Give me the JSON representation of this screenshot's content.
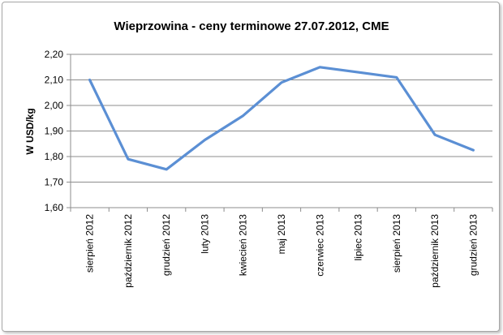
{
  "chart_data": {
    "type": "line",
    "title": "Wieprzowina - ceny terminowe 27.07.2012, CME",
    "xlabel": "",
    "ylabel": "W USD/kg",
    "categories": [
      "sierpień 2012",
      "październik 2012",
      "grudzień 2012",
      "luty 2013",
      "kwiecień 2013",
      "maj 2013",
      "czerwiec 2013",
      "lipiec 2013",
      "sierpień 2013",
      "październik 2013",
      "grudzień 2013"
    ],
    "series": [
      {
        "values": [
          2.1,
          1.79,
          1.75,
          1.865,
          1.96,
          2.09,
          2.15,
          2.13,
          2.11,
          1.885,
          1.825
        ],
        "color": "#5b8fd4"
      }
    ],
    "ylim": [
      1.6,
      2.2
    ],
    "yticks": [
      "1,60",
      "1,70",
      "1,80",
      "1,90",
      "2,00",
      "2,10",
      "2,20"
    ],
    "grid": true,
    "legend": "none"
  }
}
